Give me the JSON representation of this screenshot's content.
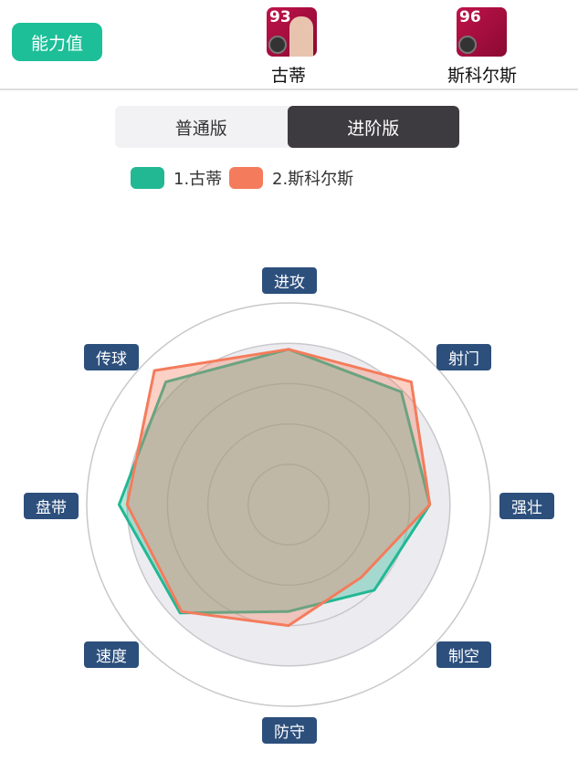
{
  "header": {
    "stat_button": "能力值"
  },
  "players": [
    {
      "rating": "93",
      "name": "古蒂"
    },
    {
      "rating": "96",
      "name": "斯科尔斯"
    }
  ],
  "toggle": {
    "options": [
      "普通版",
      "进阶版"
    ],
    "selected": "进阶版"
  },
  "chart_data": {
    "type": "radar",
    "axes": [
      "进攻",
      "射门",
      "强壮",
      "制空",
      "防守",
      "速度",
      "盘带",
      "传球"
    ],
    "range": [
      0,
      100
    ],
    "legend_placement": "top",
    "series": [
      {
        "name": "1.古蒂",
        "color": "#22b894",
        "values": [
          77,
          79,
          70,
          60,
          53,
          76,
          84,
          86
        ]
      },
      {
        "name": "2.斯科尔斯",
        "color": "#f47c5c",
        "values": [
          77,
          86,
          70,
          51,
          60,
          75,
          80,
          94
        ]
      }
    ]
  }
}
